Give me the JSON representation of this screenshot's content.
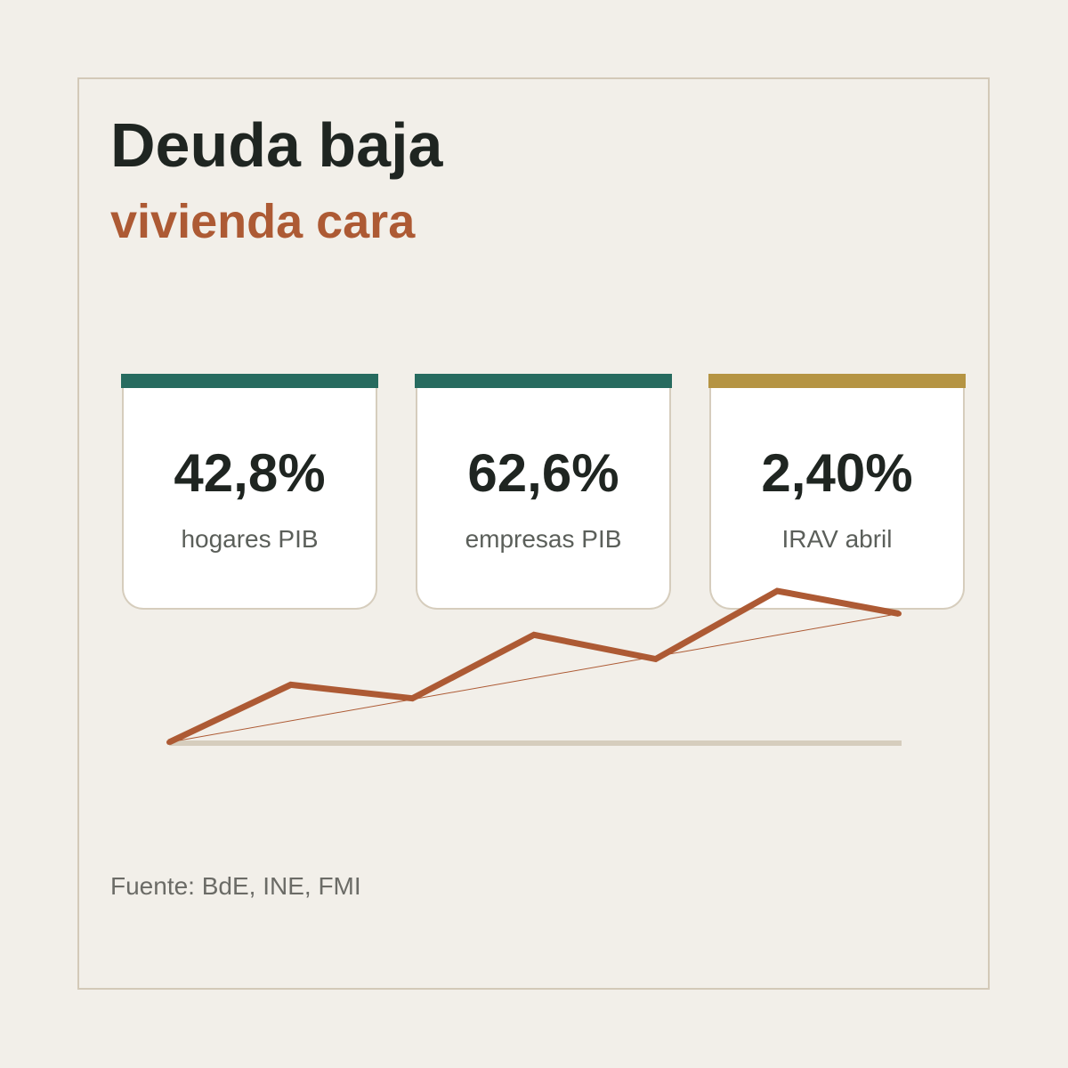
{
  "header": {
    "title": "Deuda baja",
    "subtitle": "vivienda cara"
  },
  "cards": [
    {
      "value": "42,8%",
      "label": "hogares PIB",
      "color": "#276b5f"
    },
    {
      "value": "62,6%",
      "label": "empresas PIB",
      "color": "#276b5f"
    },
    {
      "value": "2,40%",
      "label": "IRAV abril",
      "color": "#b59443"
    }
  ],
  "colors": {
    "background": "#f2efe9",
    "title": "#1f2521",
    "accent": "#ad5a34",
    "baseline": "#d6cdbd"
  },
  "chart_data": {
    "type": "line",
    "title": "",
    "xlabel": "",
    "ylabel": "",
    "x": [
      0,
      1,
      2,
      3,
      4,
      5,
      6
    ],
    "series": [
      {
        "values": [
          0,
          0.38,
          0.29,
          0.71,
          0.55,
          1.0,
          0.85
        ]
      }
    ],
    "ylim": [
      0,
      1
    ],
    "grid": false,
    "trendline": true
  },
  "footer": {
    "source": "Fuente: BdE, INE, FMI"
  }
}
